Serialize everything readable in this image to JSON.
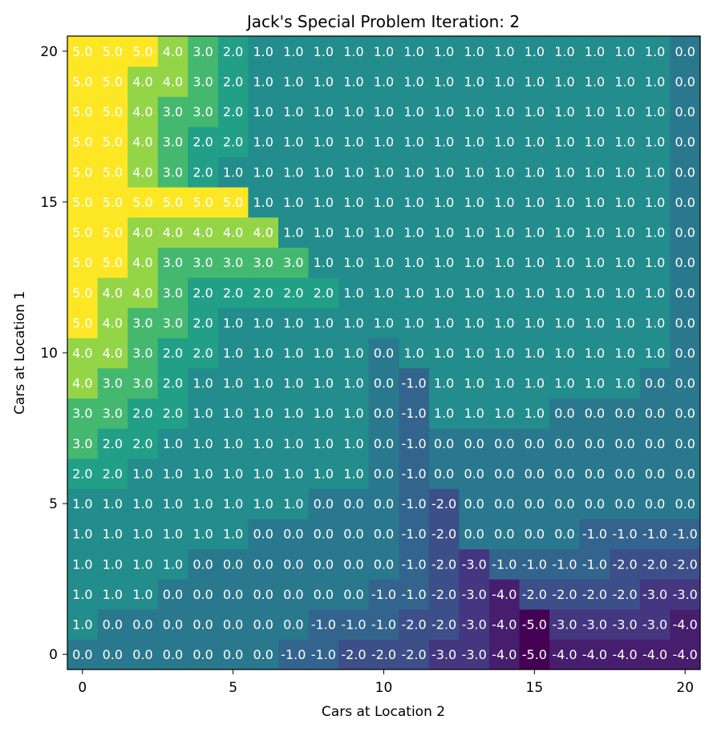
{
  "chart_data": {
    "type": "heatmap",
    "title": "Jack's Special Problem Iteration: 2",
    "xlabel": "Cars at Location 2",
    "ylabel": "Cars at Location 1",
    "x_ticks": [
      0,
      5,
      10,
      15,
      20
    ],
    "y_ticks": [
      0,
      5,
      10,
      15,
      20
    ],
    "xlim": [
      0,
      20
    ],
    "ylim": [
      0,
      20
    ],
    "value_range": [
      -5,
      5
    ],
    "colormap": "viridis",
    "grid": false,
    "values": [
      [
        0.0,
        0.0,
        0.0,
        0.0,
        0.0,
        0.0,
        0.0,
        -1.0,
        -1.0,
        -2.0,
        -2.0,
        -2.0,
        -3.0,
        -3.0,
        -4.0,
        -5.0,
        -4.0,
        -4.0,
        -4.0,
        -4.0,
        -4.0
      ],
      [
        1.0,
        0.0,
        0.0,
        0.0,
        0.0,
        0.0,
        0.0,
        0.0,
        -1.0,
        -1.0,
        -1.0,
        -2.0,
        -2.0,
        -3.0,
        -4.0,
        -5.0,
        -3.0,
        -3.0,
        -3.0,
        -3.0,
        -4.0
      ],
      [
        1.0,
        1.0,
        1.0,
        0.0,
        0.0,
        0.0,
        0.0,
        0.0,
        0.0,
        0.0,
        -1.0,
        -1.0,
        -2.0,
        -3.0,
        -4.0,
        -2.0,
        -2.0,
        -2.0,
        -2.0,
        -3.0,
        -3.0
      ],
      [
        1.0,
        1.0,
        1.0,
        1.0,
        0.0,
        0.0,
        0.0,
        0.0,
        0.0,
        0.0,
        0.0,
        -1.0,
        -2.0,
        -3.0,
        -1.0,
        -1.0,
        -1.0,
        -1.0,
        -2.0,
        -2.0,
        -2.0
      ],
      [
        1.0,
        1.0,
        1.0,
        1.0,
        1.0,
        1.0,
        0.0,
        0.0,
        0.0,
        0.0,
        0.0,
        -1.0,
        -2.0,
        0.0,
        0.0,
        0.0,
        0.0,
        -1.0,
        -1.0,
        -1.0,
        -1.0
      ],
      [
        1.0,
        1.0,
        1.0,
        1.0,
        1.0,
        1.0,
        1.0,
        1.0,
        0.0,
        0.0,
        0.0,
        -1.0,
        -2.0,
        0.0,
        0.0,
        0.0,
        0.0,
        0.0,
        0.0,
        0.0,
        0.0
      ],
      [
        2.0,
        2.0,
        1.0,
        1.0,
        1.0,
        1.0,
        1.0,
        1.0,
        1.0,
        1.0,
        0.0,
        -1.0,
        0.0,
        0.0,
        0.0,
        0.0,
        0.0,
        0.0,
        0.0,
        0.0,
        0.0
      ],
      [
        3.0,
        2.0,
        2.0,
        1.0,
        1.0,
        1.0,
        1.0,
        1.0,
        1.0,
        1.0,
        0.0,
        -1.0,
        0.0,
        0.0,
        0.0,
        0.0,
        0.0,
        0.0,
        0.0,
        0.0,
        0.0
      ],
      [
        3.0,
        3.0,
        2.0,
        2.0,
        1.0,
        1.0,
        1.0,
        1.0,
        1.0,
        1.0,
        0.0,
        -1.0,
        1.0,
        1.0,
        1.0,
        1.0,
        0.0,
        0.0,
        0.0,
        0.0,
        0.0
      ],
      [
        4.0,
        3.0,
        3.0,
        2.0,
        1.0,
        1.0,
        1.0,
        1.0,
        1.0,
        1.0,
        0.0,
        -1.0,
        1.0,
        1.0,
        1.0,
        1.0,
        1.0,
        1.0,
        1.0,
        0.0,
        0.0
      ],
      [
        4.0,
        4.0,
        3.0,
        2.0,
        2.0,
        1.0,
        1.0,
        1.0,
        1.0,
        1.0,
        0.0,
        1.0,
        1.0,
        1.0,
        1.0,
        1.0,
        1.0,
        1.0,
        1.0,
        1.0,
        0.0
      ],
      [
        5.0,
        4.0,
        3.0,
        3.0,
        2.0,
        1.0,
        1.0,
        1.0,
        1.0,
        1.0,
        1.0,
        1.0,
        1.0,
        1.0,
        1.0,
        1.0,
        1.0,
        1.0,
        1.0,
        1.0,
        0.0
      ],
      [
        5.0,
        4.0,
        4.0,
        3.0,
        2.0,
        2.0,
        2.0,
        2.0,
        2.0,
        1.0,
        1.0,
        1.0,
        1.0,
        1.0,
        1.0,
        1.0,
        1.0,
        1.0,
        1.0,
        1.0,
        0.0
      ],
      [
        5.0,
        5.0,
        4.0,
        3.0,
        3.0,
        3.0,
        3.0,
        3.0,
        1.0,
        1.0,
        1.0,
        1.0,
        1.0,
        1.0,
        1.0,
        1.0,
        1.0,
        1.0,
        1.0,
        1.0,
        0.0
      ],
      [
        5.0,
        5.0,
        4.0,
        4.0,
        4.0,
        4.0,
        4.0,
        1.0,
        1.0,
        1.0,
        1.0,
        1.0,
        1.0,
        1.0,
        1.0,
        1.0,
        1.0,
        1.0,
        1.0,
        1.0,
        0.0
      ],
      [
        5.0,
        5.0,
        5.0,
        5.0,
        5.0,
        5.0,
        1.0,
        1.0,
        1.0,
        1.0,
        1.0,
        1.0,
        1.0,
        1.0,
        1.0,
        1.0,
        1.0,
        1.0,
        1.0,
        1.0,
        0.0
      ],
      [
        5.0,
        5.0,
        4.0,
        3.0,
        2.0,
        1.0,
        1.0,
        1.0,
        1.0,
        1.0,
        1.0,
        1.0,
        1.0,
        1.0,
        1.0,
        1.0,
        1.0,
        1.0,
        1.0,
        1.0,
        0.0
      ],
      [
        5.0,
        5.0,
        4.0,
        3.0,
        2.0,
        2.0,
        1.0,
        1.0,
        1.0,
        1.0,
        1.0,
        1.0,
        1.0,
        1.0,
        1.0,
        1.0,
        1.0,
        1.0,
        1.0,
        1.0,
        0.0
      ],
      [
        5.0,
        5.0,
        4.0,
        3.0,
        3.0,
        2.0,
        1.0,
        1.0,
        1.0,
        1.0,
        1.0,
        1.0,
        1.0,
        1.0,
        1.0,
        1.0,
        1.0,
        1.0,
        1.0,
        1.0,
        0.0
      ],
      [
        5.0,
        5.0,
        4.0,
        4.0,
        3.0,
        2.0,
        1.0,
        1.0,
        1.0,
        1.0,
        1.0,
        1.0,
        1.0,
        1.0,
        1.0,
        1.0,
        1.0,
        1.0,
        1.0,
        1.0,
        0.0
      ],
      [
        5.0,
        5.0,
        5.0,
        4.0,
        3.0,
        2.0,
        1.0,
        1.0,
        1.0,
        1.0,
        1.0,
        1.0,
        1.0,
        1.0,
        1.0,
        1.0,
        1.0,
        1.0,
        1.0,
        1.0,
        0.0
      ]
    ]
  }
}
